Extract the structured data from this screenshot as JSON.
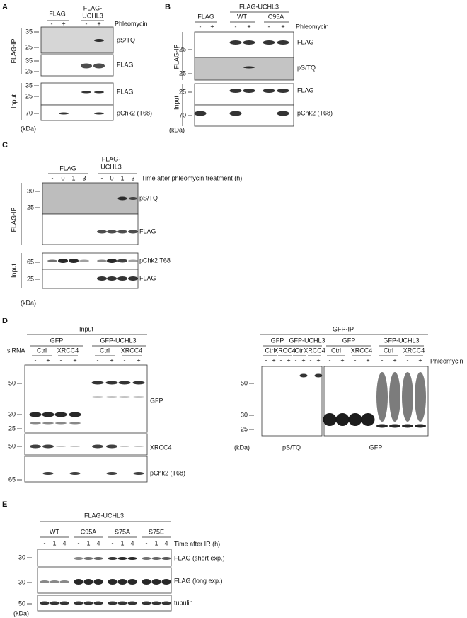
{
  "panels": {
    "a": {
      "letter": "A",
      "groups": [
        "FLAG",
        "FLAG-",
        "UCHL3"
      ],
      "treatment": [
        "-",
        "+",
        "-",
        "+"
      ],
      "treatment_label": "Phleomycin",
      "sections": [
        "FLAG-IP",
        "Input"
      ],
      "markers": [
        "35",
        "25",
        "35",
        "25",
        "35",
        "25",
        "70"
      ],
      "bands": [
        "pS/TQ",
        "FLAG",
        "FLAG",
        "pChk2 (T68)"
      ],
      "unit": "(kDa)"
    },
    "b": {
      "letter": "B",
      "groups": [
        "FLAG",
        "FLAG-UCHL3",
        "WT",
        "C95A"
      ],
      "treatment": [
        "-",
        "+",
        "-",
        "+",
        "-",
        "+"
      ],
      "treatment_label": "Phleomycin",
      "sections": [
        "FLAG-IP",
        "Input"
      ],
      "markers": [
        "25",
        "25",
        "25",
        "70"
      ],
      "bands": [
        "FLAG",
        "pS/TQ",
        "FLAG",
        "pChk2 (T68)"
      ],
      "unit": "(kDa)"
    },
    "c": {
      "letter": "C",
      "groups": [
        "FLAG",
        "FLAG-",
        "UCHL3"
      ],
      "treatment": [
        "-",
        "0",
        "1",
        "3",
        "-",
        "0",
        "1",
        "3"
      ],
      "treatment_label": "Time after phleomycin treatment (h)",
      "sections": [
        "FLAG-IP",
        "Input"
      ],
      "markers": [
        "30",
        "25",
        "65",
        "25"
      ],
      "bands": [
        "pS/TQ",
        "FLAG",
        "pChk2 T68",
        "FLAG"
      ],
      "unit": "(kDa)"
    },
    "d": {
      "letter": "D",
      "input": "Input",
      "input_groups": [
        "GFP",
        "GFP-UCHL3"
      ],
      "sirna": "siRNA",
      "input_conditions": [
        "Ctrl",
        "XRCC4",
        "Ctrl",
        "XRCC4"
      ],
      "input_treatment": [
        "-",
        "+",
        "-",
        "+",
        "-",
        "+",
        "-",
        "+"
      ],
      "input_markers": [
        "50",
        "30",
        "25",
        "50",
        "65"
      ],
      "input_bands": [
        "GFP",
        "XRCC4",
        "pChk2 (T68)"
      ],
      "ip": "GFP-IP",
      "ip_groups": [
        "GFP",
        "GFP-UCHL3",
        "GFP",
        "GFP-UCHL3"
      ],
      "ip_conditions": [
        "Ctrl",
        "XRCC4",
        "Ctrl",
        "XRCC4",
        "Ctrl",
        "XRCC4",
        "Ctrl",
        "XRCC4"
      ],
      "ip_treatment": [
        "-",
        "+",
        "-",
        "+",
        "-",
        "+",
        "-",
        "+",
        "-",
        "+",
        "-",
        "+",
        "-",
        "+",
        "-",
        "+"
      ],
      "treatment_label": "Phleomycin",
      "ip_markers": [
        "50",
        "30",
        "25"
      ],
      "unit": "(kDa)",
      "ip_blots": [
        "pS/TQ",
        "GFP"
      ]
    },
    "e": {
      "letter": "E",
      "group": "FLAG-UCHL3",
      "conditions": [
        "WT",
        "C95A",
        "S75A",
        "S75E"
      ],
      "treatment": [
        "-",
        "1",
        "4",
        "-",
        "1",
        "4",
        "-",
        "1",
        "4",
        "-",
        "1",
        "4"
      ],
      "treatment_label": "Time after IR (h)",
      "markers": [
        "30",
        "30",
        "50"
      ],
      "bands": [
        "FLAG (short exp.)",
        "FLAG (long exp.)",
        "tubulin"
      ],
      "unit": "(kDa)"
    }
  }
}
